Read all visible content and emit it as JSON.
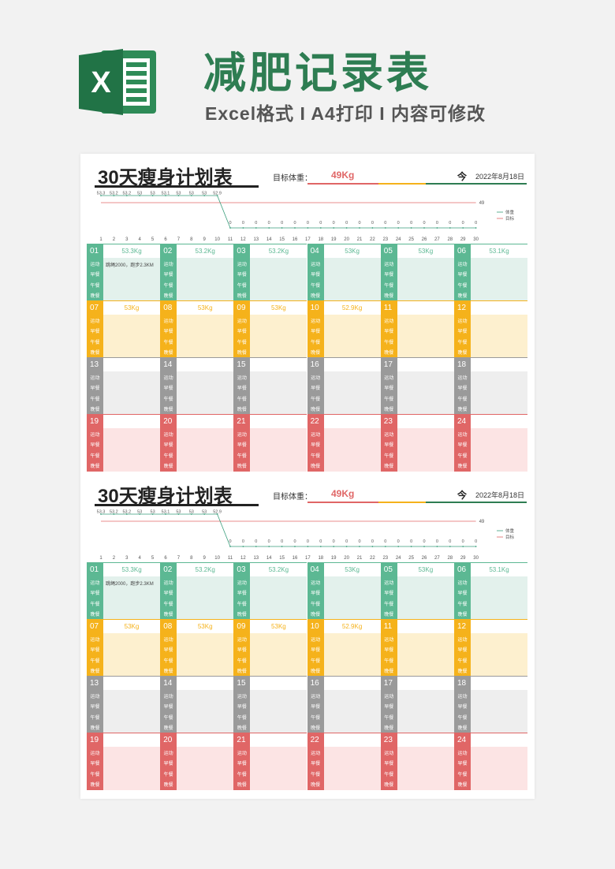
{
  "header": {
    "title": "减肥记录表",
    "subtitle": "Excel格式 I A4打印 I 内容可修改",
    "logo_letter": "X"
  },
  "sheet": {
    "title": "30天瘦身计划表",
    "target_label": "目标体重：",
    "target_value": "49Kg",
    "today_label": "今",
    "date": "2022年8月18日",
    "day_labels": [
      "运动",
      "早餐",
      "午餐",
      "晚餐"
    ],
    "weights": [
      "53.3Kg",
      "53.2Kg",
      "53.2Kg",
      "53Kg",
      "53Kg",
      "53.1Kg",
      "53Kg",
      "53Kg",
      "53Kg",
      "52.9Kg",
      "",
      "",
      "",
      "",
      "",
      "",
      "",
      "",
      "",
      "",
      "",
      "",
      "",
      ""
    ],
    "days": [
      "01",
      "02",
      "03",
      "04",
      "05",
      "06",
      "07",
      "08",
      "09",
      "10",
      "11",
      "12",
      "13",
      "14",
      "15",
      "16",
      "17",
      "18",
      "19",
      "20",
      "21",
      "22",
      "23",
      "24"
    ],
    "notes": [
      "跳绳2000，跑步2.3KM"
    ],
    "colors": {
      "green": "#5cb893",
      "green_bg": "#e3f1ec",
      "yellow": "#f5b21b",
      "yellow_bg": "#fdf0cf",
      "gray": "#9a9a9a",
      "gray_bg": "#eeeeee",
      "red": "#e06666",
      "red_bg": "#fce4e4",
      "accent": "#2e7d52"
    }
  },
  "chart_data": {
    "type": "line",
    "x": [
      1,
      2,
      3,
      4,
      5,
      6,
      7,
      8,
      9,
      10,
      11,
      12,
      13,
      14,
      15,
      16,
      17,
      18,
      19,
      20,
      21,
      22,
      23,
      24,
      25,
      26,
      27,
      28,
      29,
      30
    ],
    "series": [
      {
        "name": "体重",
        "values": [
          53.3,
          53.2,
          53.2,
          53,
          53,
          53.1,
          53,
          53,
          53,
          52.9,
          0,
          0,
          0,
          0,
          0,
          0,
          0,
          0,
          0,
          0,
          0,
          0,
          0,
          0,
          0,
          0,
          0,
          0,
          0,
          0
        ],
        "labels": [
          "53.3",
          "53.2",
          "53.2",
          "53",
          "53",
          "53.1",
          "53",
          "53",
          "53",
          "52.9",
          "0",
          "0",
          "0",
          "0",
          "0",
          "0",
          "0",
          "0",
          "0",
          "0",
          "0",
          "0",
          "0",
          "0",
          "0",
          "0",
          "0",
          "0",
          "0",
          "0"
        ]
      },
      {
        "name": "目标",
        "values": [
          49,
          49,
          49,
          49,
          49,
          49,
          49,
          49,
          49,
          49,
          49,
          49,
          49,
          49,
          49,
          49,
          49,
          49,
          49,
          49,
          49,
          49,
          49,
          49,
          49,
          49,
          49,
          49,
          49,
          49
        ]
      }
    ],
    "target_label": "49",
    "legend": [
      "体重",
      "目标"
    ],
    "legend_position": "right"
  }
}
